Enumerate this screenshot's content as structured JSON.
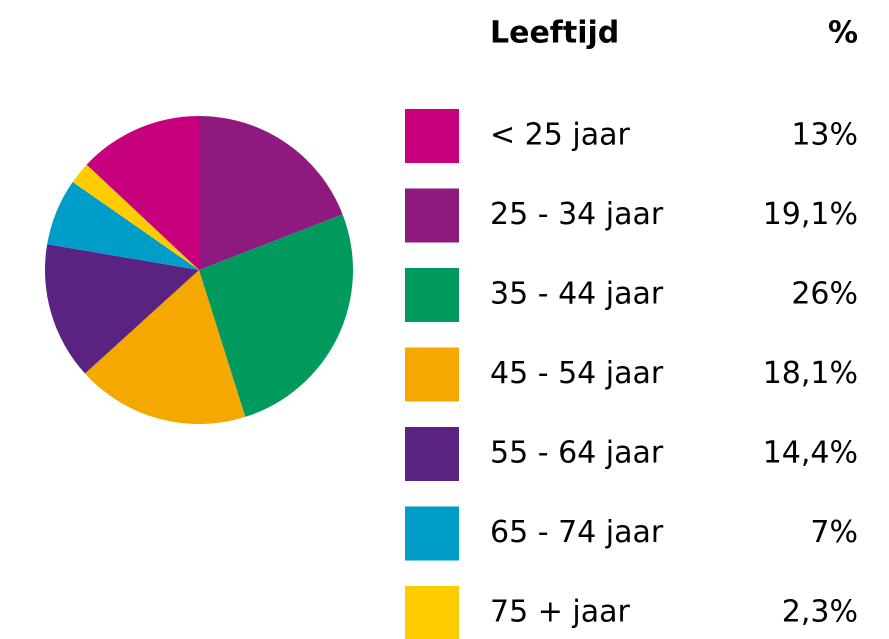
{
  "chart_data": {
    "type": "pie",
    "legend_header": "Leeftijd",
    "value_header": "%",
    "categories": [
      "< 25 jaar",
      "25 - 34 jaar",
      "35 - 44 jaar",
      "45 - 54 jaar",
      "55 - 64 jaar",
      "65 - 74 jaar",
      "75 + jaar"
    ],
    "values": [
      13,
      19.1,
      26,
      18.1,
      14.4,
      7,
      2.3
    ],
    "value_labels": [
      "13%",
      "19,1%",
      "26%",
      "18,1%",
      "14,4%",
      "7%",
      "2,3%"
    ],
    "colors": [
      "#c7007d",
      "#8e1a7f",
      "#009a5e",
      "#f5a800",
      "#5a2382",
      "#009dc9",
      "#ffcc00"
    ]
  }
}
